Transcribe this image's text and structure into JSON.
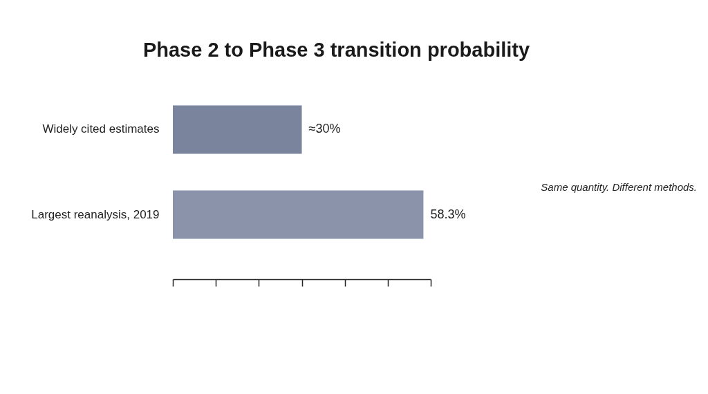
{
  "chart_data": {
    "type": "bar",
    "orientation": "horizontal",
    "title": "Phase 2 to Phase 3 transition probability",
    "categories": [
      "Widely cited estimates",
      "Largest reanalysis, 2019"
    ],
    "values": [
      30,
      58.3
    ],
    "value_labels": [
      "≈30%",
      "58.3%"
    ],
    "colors": [
      "#7a849c",
      "#8a93a9"
    ],
    "grid": false,
    "annotations": [
      "Same quantity. Different methods."
    ]
  }
}
